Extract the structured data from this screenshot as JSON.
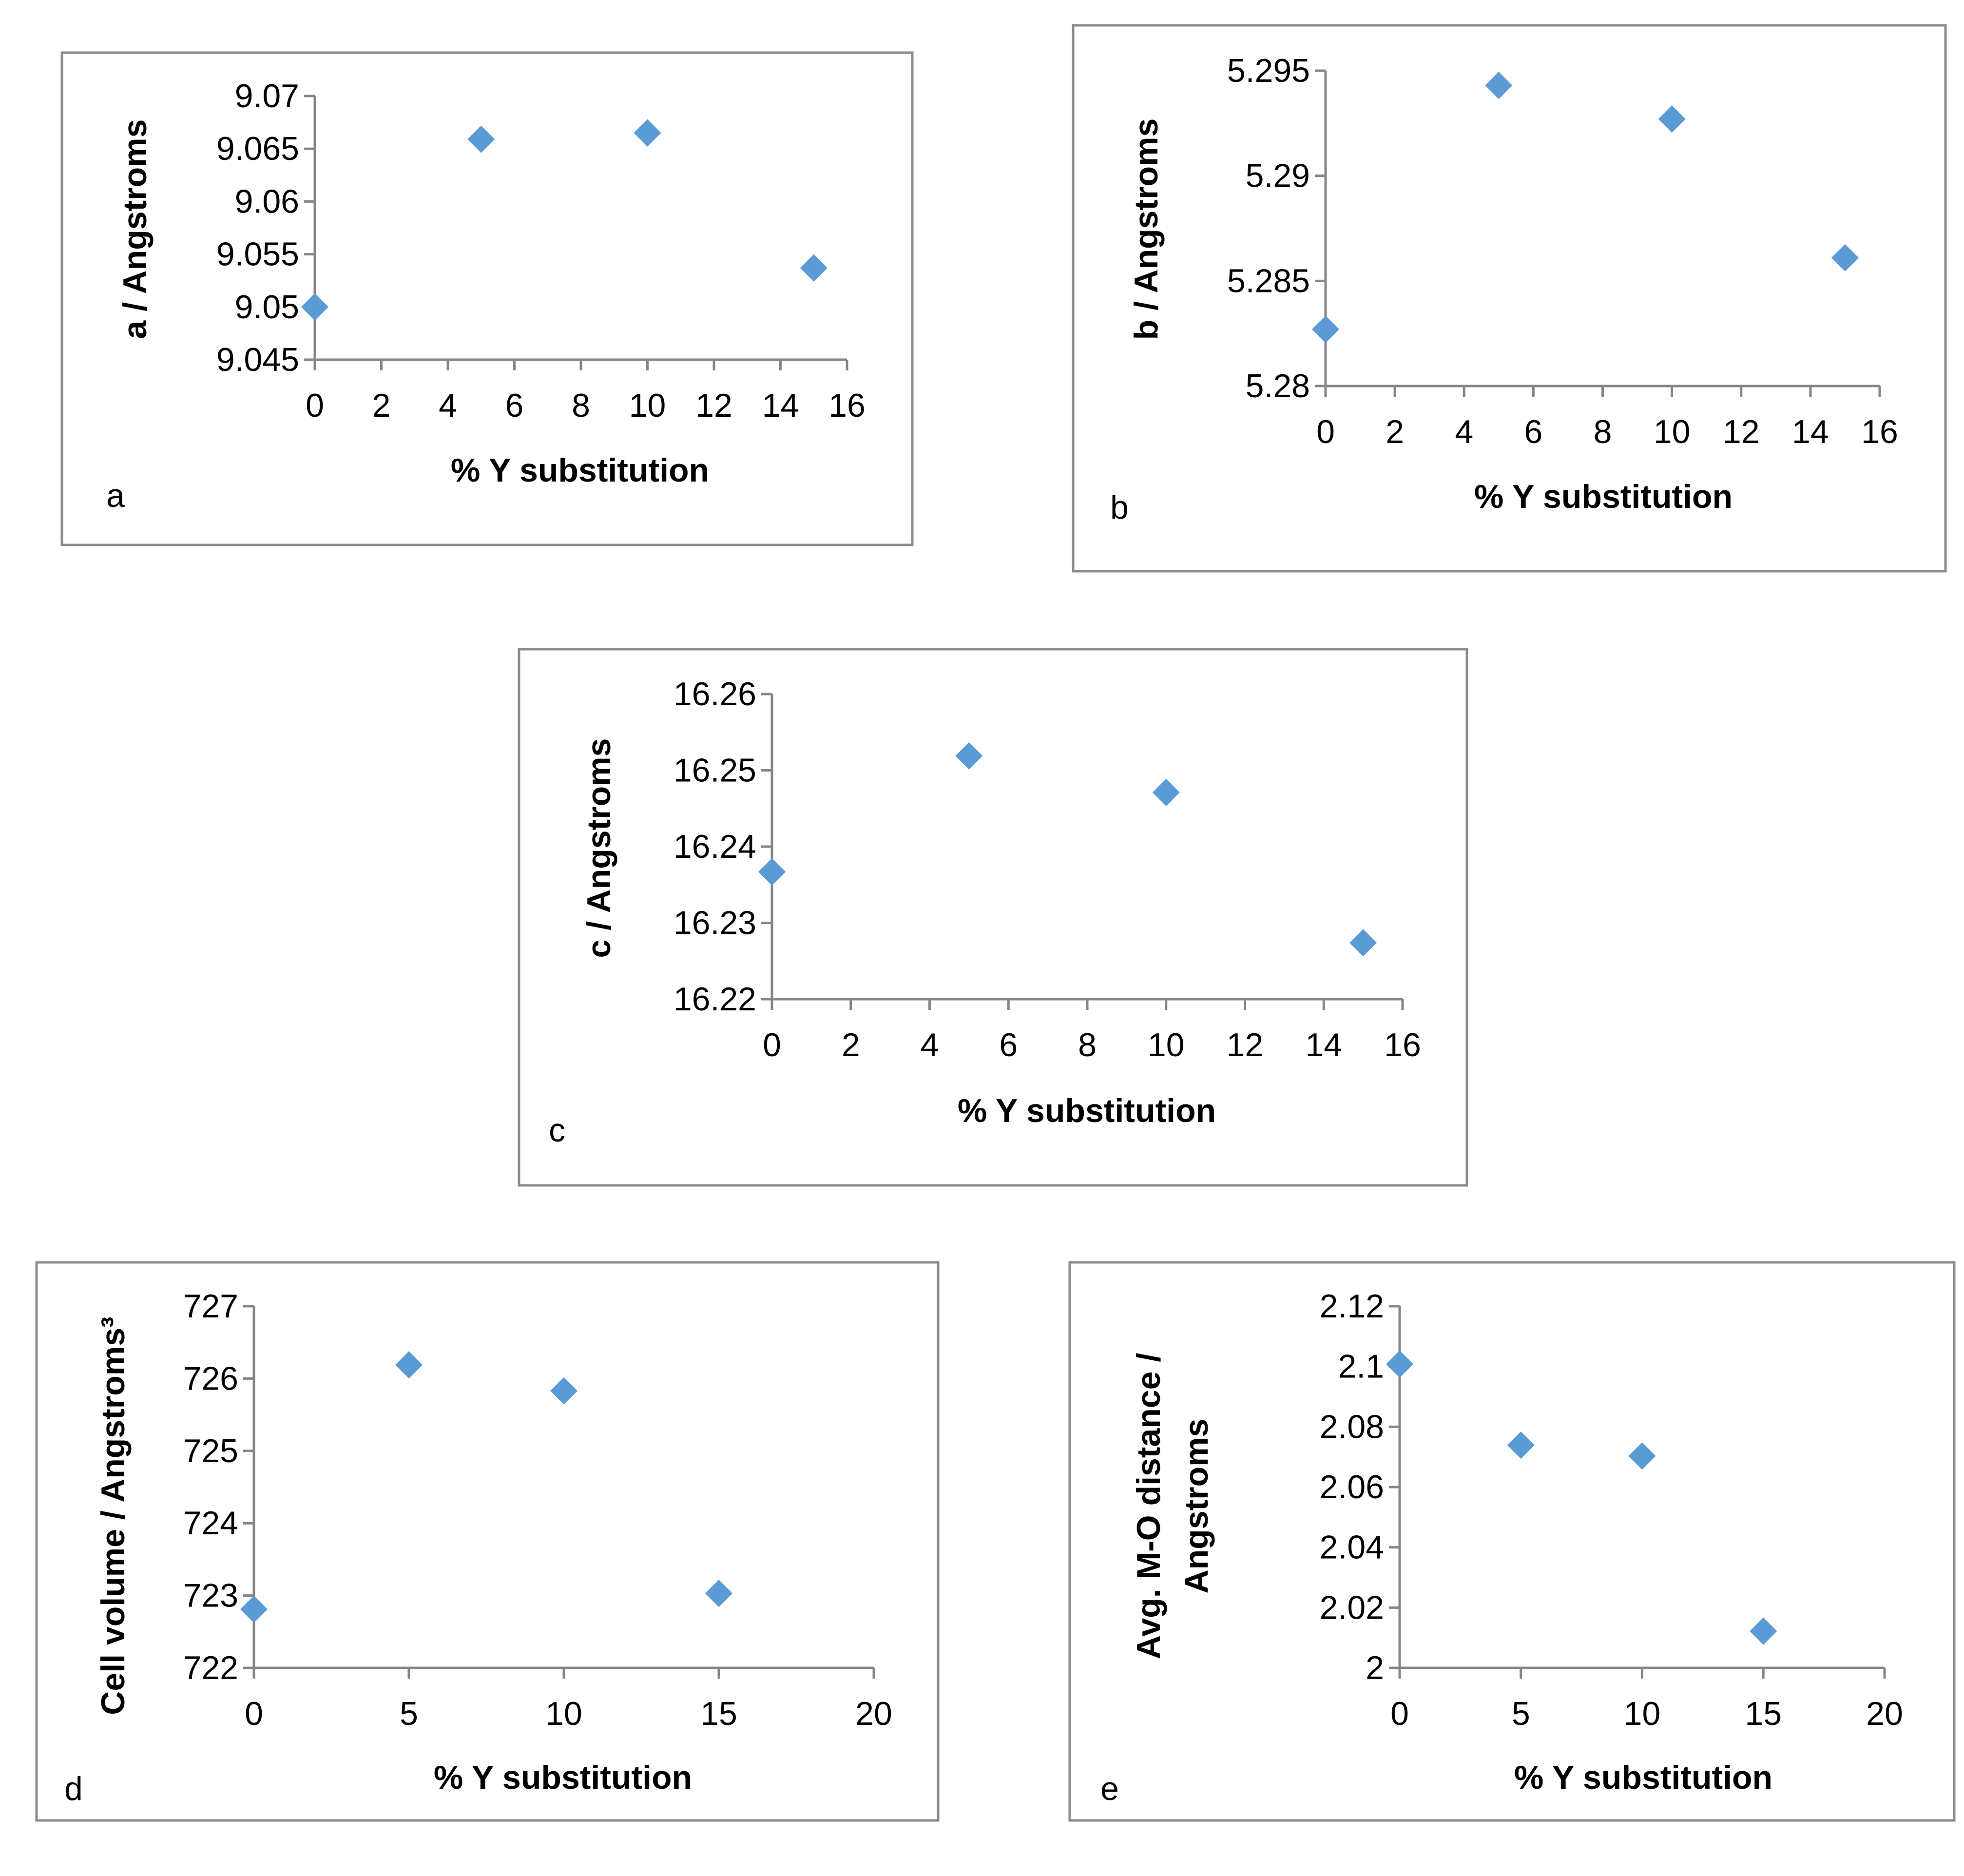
{
  "marker_color": "#5b9bd5",
  "chart_data": [
    {
      "type": "scatter",
      "panel_label": "a",
      "title": "",
      "xlabel": "% Y substitution",
      "ylabel": "a / Angstroms",
      "xlim": [
        0,
        16
      ],
      "ylim": [
        9.045,
        9.07
      ],
      "x_ticks": [
        "0",
        "2",
        "4",
        "6",
        "8",
        "10",
        "12",
        "14",
        "16"
      ],
      "y_ticks": [
        "9.045",
        "9.05",
        "9.055",
        "9.06",
        "9.065",
        "9.07"
      ],
      "series": [
        {
          "name": "a",
          "x": [
            0,
            5,
            10,
            15
          ],
          "y": [
            9.05,
            9.0659,
            9.0665,
            9.0537
          ]
        }
      ]
    },
    {
      "type": "scatter",
      "panel_label": "b",
      "title": "",
      "xlabel": "% Y substitution",
      "ylabel": "b / Angstroms",
      "xlim": [
        0,
        16
      ],
      "ylim": [
        5.28,
        5.295
      ],
      "x_ticks": [
        "0",
        "2",
        "4",
        "6",
        "8",
        "10",
        "12",
        "14",
        "16"
      ],
      "y_ticks": [
        "5.28",
        "5.285",
        "5.29",
        "5.295"
      ],
      "series": [
        {
          "name": "b",
          "x": [
            0,
            5,
            10,
            15
          ],
          "y": [
            5.2827,
            5.2943,
            5.2927,
            5.2861
          ]
        }
      ]
    },
    {
      "type": "scatter",
      "panel_label": "c",
      "title": "",
      "xlabel": "% Y substitution",
      "ylabel": "c / Angstroms",
      "xlim": [
        0,
        16
      ],
      "ylim": [
        16.22,
        16.26
      ],
      "x_ticks": [
        "0",
        "2",
        "4",
        "6",
        "8",
        "10",
        "12",
        "14",
        "16"
      ],
      "y_ticks": [
        "16.22",
        "16.23",
        "16.24",
        "16.25",
        "16.26"
      ],
      "series": [
        {
          "name": "c",
          "x": [
            0,
            5,
            10,
            15
          ],
          "y": [
            16.2367,
            16.2519,
            16.2471,
            16.2274
          ]
        }
      ]
    },
    {
      "type": "scatter",
      "panel_label": "d",
      "title": "",
      "xlabel": "% Y substitution",
      "ylabel": "Cell volume / Angstroms³",
      "xlim": [
        0,
        20
      ],
      "ylim": [
        722,
        727
      ],
      "x_ticks": [
        "0",
        "5",
        "10",
        "15",
        "20"
      ],
      "y_ticks": [
        "722",
        "723",
        "724",
        "725",
        "726",
        "727"
      ],
      "series": [
        {
          "name": "volume",
          "x": [
            0,
            5,
            10,
            15
          ],
          "y": [
            722.81,
            726.19,
            725.83,
            723.03
          ]
        }
      ]
    },
    {
      "type": "scatter",
      "panel_label": "e",
      "title": "",
      "xlabel": "% Y substitution",
      "ylabel_lines": [
        "Avg. M-O distance /",
        "Angstroms"
      ],
      "xlim": [
        0,
        20
      ],
      "ylim": [
        2,
        2.12
      ],
      "x_ticks": [
        "0",
        "5",
        "10",
        "15",
        "20"
      ],
      "y_ticks": [
        "2",
        "2.02",
        "2.04",
        "2.06",
        "2.08",
        "2.1",
        "2.12"
      ],
      "series": [
        {
          "name": "M-O",
          "x": [
            0,
            5,
            10,
            15
          ],
          "y": [
            2.1008,
            2.0739,
            2.0703,
            2.0122
          ]
        }
      ]
    }
  ]
}
